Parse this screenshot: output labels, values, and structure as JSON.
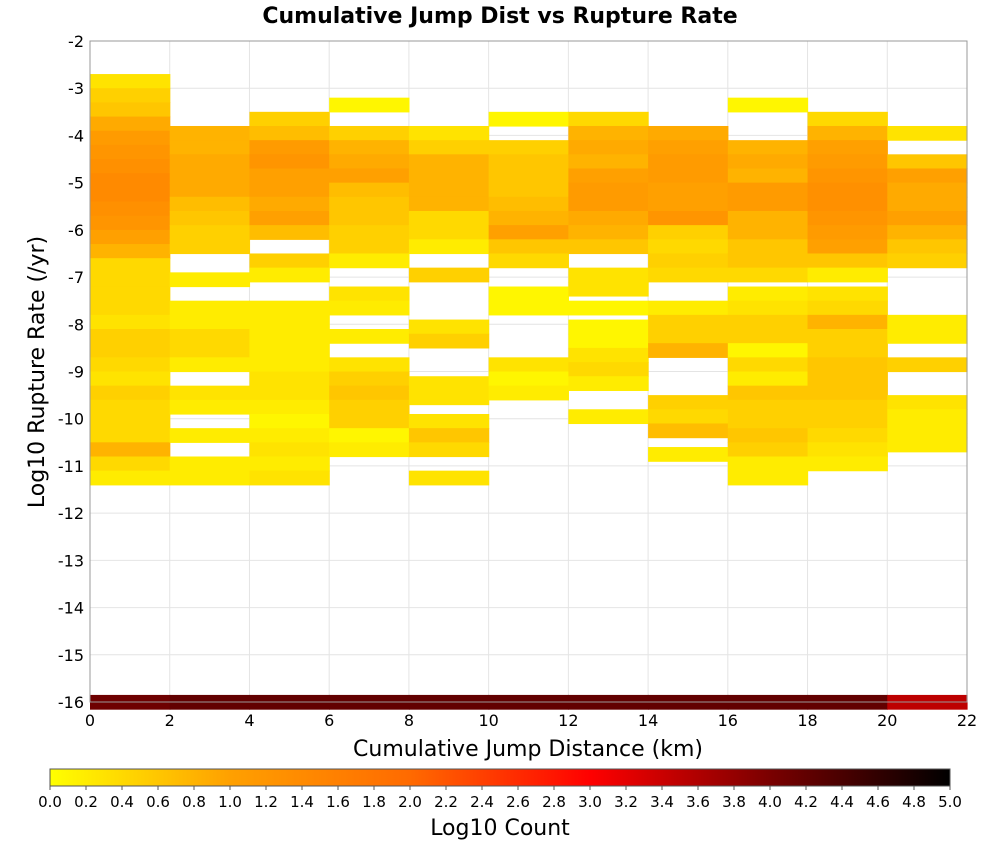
{
  "chart_data": {
    "type": "heatmap",
    "title": "Cumulative Jump Dist vs Rupture Rate",
    "xlabel": "Cumulative Jump Distance (km)",
    "ylabel": "Log10 Rupture Rate (/yr)",
    "xlim": [
      0,
      22
    ],
    "ylim": [
      -16,
      -2
    ],
    "x_ticks": [
      0,
      2,
      4,
      6,
      8,
      10,
      12,
      14,
      16,
      18,
      20,
      22
    ],
    "y_ticks": [
      -2,
      -3,
      -4,
      -5,
      -6,
      -7,
      -8,
      -9,
      -10,
      -11,
      -12,
      -13,
      -14,
      -15,
      -16
    ],
    "x_bin_width": 2,
    "y_bin_height": 0.3,
    "grid": true,
    "colorbar": {
      "label": "Log10 Count",
      "range": [
        0.0,
        5.0
      ],
      "ticks": [
        "0.0",
        "0.2",
        "0.4",
        "0.6",
        "0.8",
        "1.0",
        "1.2",
        "1.4",
        "1.6",
        "1.8",
        "2.0",
        "2.2",
        "2.4",
        "2.6",
        "2.8",
        "3.0",
        "3.2",
        "3.4",
        "3.6",
        "3.8",
        "4.0",
        "4.2",
        "4.4",
        "4.6",
        "4.8",
        "5.0"
      ],
      "colors": [
        "#ffff00",
        "#ffa000",
        "#ff6a00",
        "#ff0000",
        "#7a0000",
        "#000000"
      ]
    },
    "columns": [
      {
        "x": 0,
        "cells": [
          [
            -2.85,
            0.3
          ],
          [
            -3.15,
            0.5
          ],
          [
            -3.45,
            0.6
          ],
          [
            -3.75,
            0.9
          ],
          [
            -4.05,
            1.1
          ],
          [
            -4.35,
            1.2
          ],
          [
            -4.65,
            1.3
          ],
          [
            -4.95,
            1.4
          ],
          [
            -5.25,
            1.4
          ],
          [
            -5.55,
            1.3
          ],
          [
            -5.85,
            1.2
          ],
          [
            -6.15,
            1.0
          ],
          [
            -6.45,
            0.8
          ],
          [
            -6.75,
            0.4
          ],
          [
            -7.05,
            0.4
          ],
          [
            -7.35,
            0.4
          ],
          [
            -7.65,
            0.4
          ],
          [
            -7.95,
            0.3
          ],
          [
            -8.25,
            0.5
          ],
          [
            -8.55,
            0.5
          ],
          [
            -8.85,
            0.4
          ],
          [
            -9.15,
            0.3
          ],
          [
            -9.45,
            0.5
          ],
          [
            -9.75,
            0.4
          ],
          [
            -10.05,
            0.4
          ],
          [
            -10.35,
            0.4
          ],
          [
            -10.65,
            0.8
          ],
          [
            -10.95,
            0.4
          ],
          [
            -11.25,
            0.2
          ],
          [
            -16.0,
            4.1
          ]
        ]
      },
      {
        "x": 2,
        "cells": [
          [
            -3.95,
            0.8
          ],
          [
            -4.25,
            0.8
          ],
          [
            -4.55,
            0.9
          ],
          [
            -4.85,
            0.9
          ],
          [
            -5.15,
            0.9
          ],
          [
            -5.45,
            0.7
          ],
          [
            -5.75,
            0.6
          ],
          [
            -6.05,
            0.5
          ],
          [
            -6.35,
            0.5
          ],
          [
            -7.05,
            0.2
          ],
          [
            -7.65,
            0.2
          ],
          [
            -7.95,
            0.2
          ],
          [
            -8.25,
            0.4
          ],
          [
            -8.55,
            0.4
          ],
          [
            -8.85,
            0.2
          ],
          [
            -9.45,
            0.3
          ],
          [
            -9.75,
            0.2
          ],
          [
            -10.35,
            0.2
          ],
          [
            -10.95,
            0.2
          ],
          [
            -11.25,
            0.2
          ],
          [
            -16.0,
            4.2
          ]
        ]
      },
      {
        "x": 4,
        "cells": [
          [
            -3.65,
            0.5
          ],
          [
            -3.95,
            0.7
          ],
          [
            -4.25,
            1.1
          ],
          [
            -4.55,
            1.2
          ],
          [
            -4.85,
            1.0
          ],
          [
            -5.15,
            1.0
          ],
          [
            -5.45,
            0.9
          ],
          [
            -5.75,
            1.0
          ],
          [
            -6.05,
            0.7
          ],
          [
            -6.65,
            0.5
          ],
          [
            -6.95,
            0.2
          ],
          [
            -7.65,
            0.2
          ],
          [
            -7.95,
            0.2
          ],
          [
            -8.25,
            0.2
          ],
          [
            -8.55,
            0.2
          ],
          [
            -8.85,
            0.2
          ],
          [
            -9.15,
            0.3
          ],
          [
            -9.45,
            0.3
          ],
          [
            -9.75,
            0.2
          ],
          [
            -10.05,
            0.1
          ],
          [
            -10.35,
            0.2
          ],
          [
            -10.65,
            0.3
          ],
          [
            -10.95,
            0.2
          ],
          [
            -11.25,
            0.3
          ],
          [
            -16.0,
            4.2
          ]
        ]
      },
      {
        "x": 6,
        "cells": [
          [
            -3.35,
            0.1
          ],
          [
            -3.95,
            0.5
          ],
          [
            -4.25,
            0.8
          ],
          [
            -4.55,
            0.9
          ],
          [
            -4.85,
            1.0
          ],
          [
            -5.15,
            0.7
          ],
          [
            -5.45,
            0.6
          ],
          [
            -5.75,
            0.6
          ],
          [
            -6.05,
            0.5
          ],
          [
            -6.35,
            0.5
          ],
          [
            -6.65,
            0.2
          ],
          [
            -7.35,
            0.3
          ],
          [
            -7.65,
            0.2
          ],
          [
            -8.25,
            0.2
          ],
          [
            -8.85,
            0.3
          ],
          [
            -9.15,
            0.5
          ],
          [
            -9.45,
            0.6
          ],
          [
            -9.75,
            0.5
          ],
          [
            -10.05,
            0.5
          ],
          [
            -10.35,
            0.1
          ],
          [
            -10.65,
            0.2
          ],
          [
            -16.0,
            4.2
          ]
        ]
      },
      {
        "x": 8,
        "cells": [
          [
            -3.95,
            0.3
          ],
          [
            -4.25,
            0.5
          ],
          [
            -4.55,
            0.8
          ],
          [
            -4.85,
            0.8
          ],
          [
            -5.15,
            0.8
          ],
          [
            -5.45,
            0.8
          ],
          [
            -5.75,
            0.4
          ],
          [
            -6.05,
            0.4
          ],
          [
            -6.35,
            0.2
          ],
          [
            -6.95,
            0.5
          ],
          [
            -8.05,
            0.3
          ],
          [
            -8.35,
            0.5
          ],
          [
            -9.25,
            0.3
          ],
          [
            -9.55,
            0.3
          ],
          [
            -10.05,
            0.3
          ],
          [
            -10.35,
            0.6
          ],
          [
            -10.65,
            0.4
          ],
          [
            -11.25,
            0.3
          ],
          [
            -16.0,
            4.2
          ]
        ]
      },
      {
        "x": 10,
        "cells": [
          [
            -3.65,
            0.1
          ],
          [
            -4.25,
            0.5
          ],
          [
            -4.55,
            0.6
          ],
          [
            -4.85,
            0.6
          ],
          [
            -5.15,
            0.6
          ],
          [
            -5.45,
            0.7
          ],
          [
            -5.75,
            0.8
          ],
          [
            -6.05,
            1.0
          ],
          [
            -6.35,
            0.6
          ],
          [
            -6.65,
            0.4
          ],
          [
            -7.35,
            0.1
          ],
          [
            -7.65,
            0.1
          ],
          [
            -8.85,
            0.3
          ],
          [
            -9.15,
            0.1
          ],
          [
            -9.45,
            0.2
          ],
          [
            -16.0,
            4.2
          ]
        ]
      },
      {
        "x": 12,
        "cells": [
          [
            -3.65,
            0.4
          ],
          [
            -3.95,
            0.8
          ],
          [
            -4.25,
            0.9
          ],
          [
            -4.55,
            0.8
          ],
          [
            -4.85,
            1.0
          ],
          [
            -5.15,
            1.1
          ],
          [
            -5.45,
            1.1
          ],
          [
            -5.75,
            0.9
          ],
          [
            -6.05,
            0.8
          ],
          [
            -6.35,
            0.6
          ],
          [
            -6.95,
            0.3
          ],
          [
            -7.25,
            0.3
          ],
          [
            -7.65,
            0.1
          ],
          [
            -8.05,
            0.1
          ],
          [
            -8.35,
            0.1
          ],
          [
            -8.65,
            0.3
          ],
          [
            -8.95,
            0.4
          ],
          [
            -9.25,
            0.2
          ],
          [
            -9.95,
            0.2
          ],
          [
            -16.0,
            4.2
          ]
        ]
      },
      {
        "x": 14,
        "cells": [
          [
            -3.95,
            0.9
          ],
          [
            -4.25,
            1.0
          ],
          [
            -4.55,
            1.1
          ],
          [
            -4.85,
            1.1
          ],
          [
            -5.15,
            1.0
          ],
          [
            -5.45,
            1.0
          ],
          [
            -5.75,
            1.2
          ],
          [
            -6.05,
            0.5
          ],
          [
            -6.35,
            0.4
          ],
          [
            -6.65,
            0.5
          ],
          [
            -6.95,
            0.4
          ],
          [
            -7.65,
            0.2
          ],
          [
            -7.95,
            0.5
          ],
          [
            -8.25,
            0.5
          ],
          [
            -8.55,
            0.8
          ],
          [
            -9.65,
            0.5
          ],
          [
            -9.95,
            0.4
          ],
          [
            -10.25,
            0.7
          ],
          [
            -10.75,
            0.2
          ],
          [
            -16.0,
            4.2
          ]
        ]
      },
      {
        "x": 16,
        "cells": [
          [
            -3.35,
            0.1
          ],
          [
            -4.25,
            0.8
          ],
          [
            -4.55,
            0.9
          ],
          [
            -4.85,
            0.8
          ],
          [
            -5.15,
            1.1
          ],
          [
            -5.45,
            1.1
          ],
          [
            -5.75,
            0.8
          ],
          [
            -6.05,
            0.8
          ],
          [
            -6.35,
            0.6
          ],
          [
            -6.65,
            0.6
          ],
          [
            -6.95,
            0.4
          ],
          [
            -7.35,
            0.2
          ],
          [
            -7.65,
            0.3
          ],
          [
            -7.95,
            0.5
          ],
          [
            -8.25,
            0.5
          ],
          [
            -8.55,
            0.1
          ],
          [
            -8.85,
            0.4
          ],
          [
            -9.15,
            0.2
          ],
          [
            -9.45,
            0.6
          ],
          [
            -9.75,
            0.5
          ],
          [
            -10.05,
            0.5
          ],
          [
            -10.35,
            0.6
          ],
          [
            -10.65,
            0.5
          ],
          [
            -10.95,
            0.2
          ],
          [
            -11.25,
            0.2
          ],
          [
            -16.0,
            4.2
          ]
        ]
      },
      {
        "x": 18,
        "cells": [
          [
            -3.65,
            0.4
          ],
          [
            -3.95,
            0.8
          ],
          [
            -4.25,
            1.0
          ],
          [
            -4.55,
            1.1
          ],
          [
            -4.85,
            1.2
          ],
          [
            -5.15,
            1.3
          ],
          [
            -5.45,
            1.3
          ],
          [
            -5.75,
            1.2
          ],
          [
            -6.05,
            1.1
          ],
          [
            -6.35,
            1.0
          ],
          [
            -6.65,
            0.6
          ],
          [
            -6.95,
            0.2
          ],
          [
            -7.35,
            0.3
          ],
          [
            -7.65,
            0.4
          ],
          [
            -7.95,
            0.8
          ],
          [
            -8.25,
            0.5
          ],
          [
            -8.55,
            0.5
          ],
          [
            -8.85,
            0.6
          ],
          [
            -9.15,
            0.6
          ],
          [
            -9.45,
            0.6
          ],
          [
            -9.75,
            0.5
          ],
          [
            -10.05,
            0.5
          ],
          [
            -10.35,
            0.4
          ],
          [
            -10.65,
            0.3
          ],
          [
            -10.95,
            0.2
          ],
          [
            -16.0,
            4.2
          ]
        ]
      },
      {
        "x": 20,
        "cells": [
          [
            -3.95,
            0.3
          ],
          [
            -4.55,
            0.6
          ],
          [
            -4.85,
            1.0
          ],
          [
            -5.15,
            0.9
          ],
          [
            -5.45,
            0.9
          ],
          [
            -5.75,
            1.0
          ],
          [
            -6.05,
            0.8
          ],
          [
            -6.35,
            0.6
          ],
          [
            -6.65,
            0.5
          ],
          [
            -7.95,
            0.2
          ],
          [
            -8.25,
            0.2
          ],
          [
            -8.85,
            0.5
          ],
          [
            -9.65,
            0.3
          ],
          [
            -9.95,
            0.2
          ],
          [
            -10.25,
            0.2
          ],
          [
            -10.55,
            0.2
          ],
          [
            -16.0,
            3.5
          ]
        ]
      }
    ]
  }
}
